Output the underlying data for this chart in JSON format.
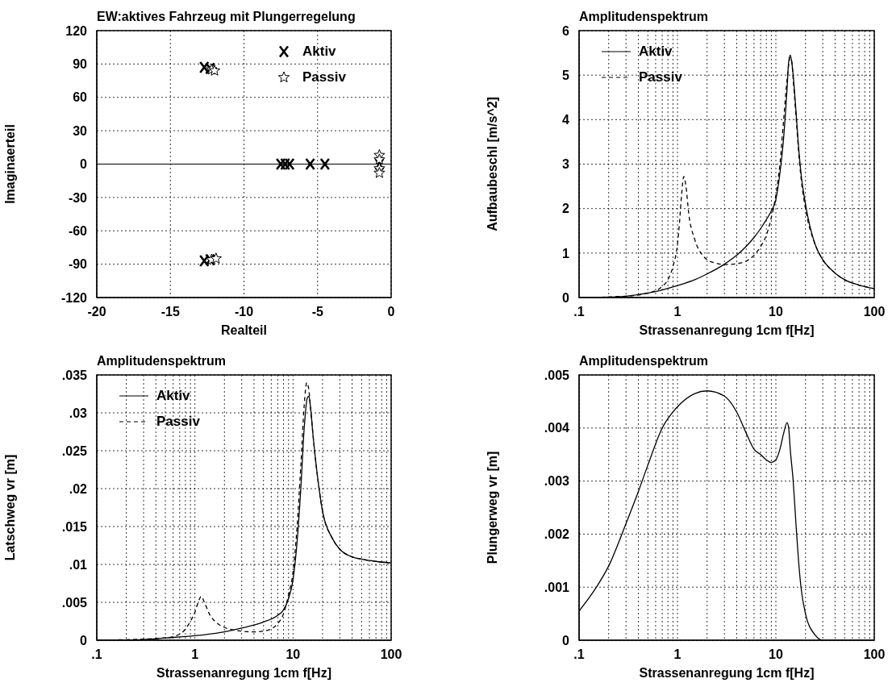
{
  "chart_data": [
    {
      "type": "scatter",
      "title": "EW:aktives Fahrzeug mit Plungerregelung",
      "xlabel": "Realteil",
      "ylabel": "Imaginaerteil",
      "xlim": [
        -20,
        0
      ],
      "xticks": [
        -20,
        -15,
        -10,
        -5,
        0
      ],
      "ylim": [
        -120,
        120
      ],
      "yticks": [
        -120,
        -90,
        -60,
        -30,
        0,
        30,
        60,
        90,
        120
      ],
      "grid": true,
      "legend": "top right",
      "ref_lines": [
        {
          "axis": "y",
          "value": 0,
          "color": "#000000",
          "line_style": "solid"
        }
      ],
      "series": [
        {
          "name": "Aktiv",
          "color": "#000000",
          "marker": "cross",
          "x": [
            -12.7,
            -12.3,
            -12.7,
            -12.3,
            -7.5,
            -7.2,
            -6.9,
            -5.5,
            -4.5,
            -0.8
          ],
          "values": [
            87,
            86,
            -87,
            -86,
            0,
            0,
            0,
            0,
            0,
            0
          ]
        },
        {
          "name": "Passiv",
          "color": "#000000",
          "marker": "star",
          "x": [
            -12.2,
            -12.0,
            -12.2,
            -11.9,
            -0.8,
            -0.8,
            -0.8,
            -0.8
          ],
          "values": [
            85,
            84,
            -86,
            -85,
            8,
            4,
            -4,
            -8
          ]
        }
      ]
    },
    {
      "type": "line",
      "title": "Amplitudenspektrum",
      "xlabel": "Strassenanregung 1cm f[Hz]",
      "ylabel": "Aufbaubeschl [m/s^2]",
      "log": "x",
      "xlim": [
        0.1,
        100
      ],
      "xticks": [
        {
          "value": 0.1,
          "label": ".1"
        },
        {
          "value": 0.2,
          "label": null
        },
        {
          "value": 0.3,
          "label": null
        },
        {
          "value": 0.4,
          "label": null
        },
        {
          "value": 0.5,
          "label": null
        },
        {
          "value": 0.6,
          "label": null
        },
        {
          "value": 0.7,
          "label": null
        },
        {
          "value": 0.8,
          "label": null
        },
        {
          "value": 0.9,
          "label": null
        },
        1,
        {
          "value": 2,
          "label": null
        },
        {
          "value": 3,
          "label": null
        },
        {
          "value": 4,
          "label": null
        },
        {
          "value": 5,
          "label": null
        },
        {
          "value": 6,
          "label": null
        },
        {
          "value": 7,
          "label": null
        },
        {
          "value": 8,
          "label": null
        },
        {
          "value": 9,
          "label": null
        },
        10,
        {
          "value": 20,
          "label": null
        },
        {
          "value": 30,
          "label": null
        },
        {
          "value": 40,
          "label": null
        },
        {
          "value": 50,
          "label": null
        },
        {
          "value": 60,
          "label": null
        },
        {
          "value": 70,
          "label": null
        },
        {
          "value": 80,
          "label": null
        },
        {
          "value": 90,
          "label": null
        },
        100
      ],
      "ylim": [
        0,
        6
      ],
      "yticks": [
        0,
        1,
        2,
        3,
        4,
        5,
        6
      ],
      "grid": true,
      "legend": "top left",
      "marker": "none",
      "series": [
        {
          "name": "Aktiv",
          "color": "#000000",
          "line_style": "solid",
          "x": [
            0.1,
            0.2,
            0.3,
            0.5,
            0.7,
            1,
            1.5,
            2,
            3,
            4,
            5,
            6,
            7,
            8,
            9,
            10,
            11,
            12,
            13,
            13.5,
            14,
            14.5,
            15,
            16,
            17,
            18,
            20,
            25,
            30,
            40,
            50,
            70,
            100
          ],
          "values": [
            0,
            0.01,
            0.03,
            0.1,
            0.17,
            0.27,
            0.4,
            0.53,
            0.75,
            0.95,
            1.15,
            1.35,
            1.55,
            1.75,
            1.95,
            2.2,
            2.8,
            3.6,
            4.7,
            5.3,
            5.45,
            5.3,
            5.0,
            4.2,
            3.4,
            2.8,
            2.1,
            1.2,
            0.85,
            0.55,
            0.4,
            0.28,
            0.2
          ]
        },
        {
          "name": "Passiv",
          "color": "#000000",
          "line_style": "dashed",
          "x": [
            0.1,
            0.3,
            0.5,
            0.7,
            0.8,
            0.9,
            1,
            1.05,
            1.1,
            1.16,
            1.22,
            1.3,
            1.5,
            1.8,
            2,
            2.5,
            3,
            4,
            5,
            6,
            7,
            8,
            9,
            10,
            11,
            12,
            13,
            14,
            14.5,
            15,
            16,
            17,
            18,
            20,
            25,
            30,
            40,
            50,
            70,
            100
          ],
          "values": [
            0,
            0.03,
            0.1,
            0.25,
            0.4,
            0.7,
            1.2,
            1.7,
            2.3,
            2.72,
            2.5,
            1.9,
            1.3,
            0.95,
            0.85,
            0.77,
            0.74,
            0.76,
            0.82,
            0.95,
            1.15,
            1.4,
            1.8,
            2.3,
            3.0,
            4.0,
            4.9,
            5.4,
            5.3,
            4.9,
            4.1,
            3.3,
            2.7,
            2.0,
            1.2,
            0.85,
            0.55,
            0.4,
            0.28,
            0.2
          ]
        }
      ]
    },
    {
      "type": "line",
      "title": "Amplitudenspektrum",
      "xlabel": "Strassenanregung 1cm f[Hz]",
      "ylabel": "Latschweg vr [m]",
      "log": "x",
      "xlim": [
        0.1,
        100
      ],
      "xticks": [
        {
          "value": 0.1,
          "label": ".1"
        },
        {
          "value": 0.2,
          "label": null
        },
        {
          "value": 0.3,
          "label": null
        },
        {
          "value": 0.4,
          "label": null
        },
        {
          "value": 0.5,
          "label": null
        },
        {
          "value": 0.6,
          "label": null
        },
        {
          "value": 0.7,
          "label": null
        },
        {
          "value": 0.8,
          "label": null
        },
        {
          "value": 0.9,
          "label": null
        },
        1,
        {
          "value": 2,
          "label": null
        },
        {
          "value": 3,
          "label": null
        },
        {
          "value": 4,
          "label": null
        },
        {
          "value": 5,
          "label": null
        },
        {
          "value": 6,
          "label": null
        },
        {
          "value": 7,
          "label": null
        },
        {
          "value": 8,
          "label": null
        },
        {
          "value": 9,
          "label": null
        },
        10,
        {
          "value": 20,
          "label": null
        },
        {
          "value": 30,
          "label": null
        },
        {
          "value": 40,
          "label": null
        },
        {
          "value": 50,
          "label": null
        },
        {
          "value": 60,
          "label": null
        },
        {
          "value": 70,
          "label": null
        },
        {
          "value": 80,
          "label": null
        },
        {
          "value": 90,
          "label": null
        },
        100
      ],
      "ylim": [
        0,
        0.035
      ],
      "yticks": [
        0,
        {
          "value": 0.005,
          "label": ".005"
        },
        {
          "value": 0.01,
          "label": ".01"
        },
        {
          "value": 0.015,
          "label": ".015"
        },
        {
          "value": 0.02,
          "label": ".02"
        },
        {
          "value": 0.025,
          "label": ".025"
        },
        {
          "value": 0.03,
          "label": ".03"
        },
        {
          "value": 0.035,
          "label": ".035"
        }
      ],
      "grid": true,
      "legend": "top left",
      "marker": "none",
      "series": [
        {
          "name": "Aktiv",
          "color": "#000000",
          "line_style": "solid",
          "x": [
            0.1,
            0.3,
            0.5,
            1,
            2,
            3,
            5,
            7,
            8,
            9,
            10,
            11,
            12,
            13,
            14,
            14.5,
            15,
            16,
            18,
            20,
            25,
            30,
            40,
            50,
            70,
            100
          ],
          "values": [
            0,
            0.0001,
            0.0003,
            0.0006,
            0.0011,
            0.0016,
            0.0024,
            0.0033,
            0.004,
            0.0055,
            0.008,
            0.013,
            0.02,
            0.028,
            0.032,
            0.0322,
            0.031,
            0.027,
            0.021,
            0.017,
            0.0135,
            0.012,
            0.011,
            0.0107,
            0.0104,
            0.0102
          ]
        },
        {
          "name": "Passiv",
          "color": "#000000",
          "line_style": "dashed",
          "x": [
            0.1,
            0.5,
            0.7,
            0.9,
            1,
            1.1,
            1.16,
            1.25,
            1.4,
            1.7,
            2,
            3,
            4,
            5,
            6,
            7,
            8,
            9,
            10,
            11,
            12,
            13,
            13.8,
            14.5,
            15,
            16,
            18,
            20,
            25,
            30,
            40,
            50,
            70,
            100
          ],
          "values": [
            0,
            0.0003,
            0.0008,
            0.0025,
            0.0037,
            0.0053,
            0.0058,
            0.005,
            0.0035,
            0.0022,
            0.0017,
            0.0012,
            0.0011,
            0.0012,
            0.0015,
            0.0022,
            0.0035,
            0.006,
            0.009,
            0.015,
            0.023,
            0.031,
            0.034,
            0.033,
            0.031,
            0.027,
            0.021,
            0.017,
            0.0135,
            0.012,
            0.011,
            0.0107,
            0.0104,
            0.0102
          ]
        }
      ]
    },
    {
      "type": "line",
      "title": "Amplitudenspektrum",
      "xlabel": "Strassenanregung 1cm f[Hz]",
      "ylabel": "Plungerweg vr [m]",
      "log": "x",
      "xlim": [
        0.1,
        100
      ],
      "xticks": [
        {
          "value": 0.1,
          "label": ".1"
        },
        {
          "value": 0.2,
          "label": null
        },
        {
          "value": 0.3,
          "label": null
        },
        {
          "value": 0.4,
          "label": null
        },
        {
          "value": 0.5,
          "label": null
        },
        {
          "value": 0.6,
          "label": null
        },
        {
          "value": 0.7,
          "label": null
        },
        {
          "value": 0.8,
          "label": null
        },
        {
          "value": 0.9,
          "label": null
        },
        1,
        {
          "value": 2,
          "label": null
        },
        {
          "value": 3,
          "label": null
        },
        {
          "value": 4,
          "label": null
        },
        {
          "value": 5,
          "label": null
        },
        {
          "value": 6,
          "label": null
        },
        {
          "value": 7,
          "label": null
        },
        {
          "value": 8,
          "label": null
        },
        {
          "value": 9,
          "label": null
        },
        10,
        {
          "value": 20,
          "label": null
        },
        {
          "value": 30,
          "label": null
        },
        {
          "value": 40,
          "label": null
        },
        {
          "value": 50,
          "label": null
        },
        {
          "value": 60,
          "label": null
        },
        {
          "value": 70,
          "label": null
        },
        {
          "value": 80,
          "label": null
        },
        {
          "value": 90,
          "label": null
        },
        100
      ],
      "ylim": [
        0,
        0.005
      ],
      "yticks": [
        0,
        {
          "value": 0.001,
          "label": ".001"
        },
        {
          "value": 0.002,
          "label": ".002"
        },
        {
          "value": 0.003,
          "label": ".003"
        },
        {
          "value": 0.004,
          "label": ".004"
        },
        {
          "value": 0.005,
          "label": ".005"
        }
      ],
      "grid": true,
      "marker": "none",
      "series": [
        {
          "color": "#000000",
          "line_style": "solid",
          "x": [
            0.1,
            0.15,
            0.2,
            0.3,
            0.4,
            0.5,
            0.7,
            1,
            1.5,
            2,
            3,
            4,
            5,
            6,
            7,
            8,
            9,
            10,
            11,
            12,
            13,
            13.5,
            14,
            15,
            16,
            17,
            18,
            20,
            25,
            30,
            40,
            100
          ],
          "values": [
            0.00055,
            0.001,
            0.0014,
            0.0022,
            0.0028,
            0.0033,
            0.004,
            0.0044,
            0.00465,
            0.0047,
            0.0046,
            0.0043,
            0.0039,
            0.0036,
            0.0035,
            0.0034,
            0.00335,
            0.0034,
            0.0036,
            0.0039,
            0.0041,
            0.004,
            0.0036,
            0.003,
            0.0022,
            0.0015,
            0.001,
            0.0005,
            0.0001,
            0,
            0,
            0
          ]
        }
      ]
    }
  ]
}
